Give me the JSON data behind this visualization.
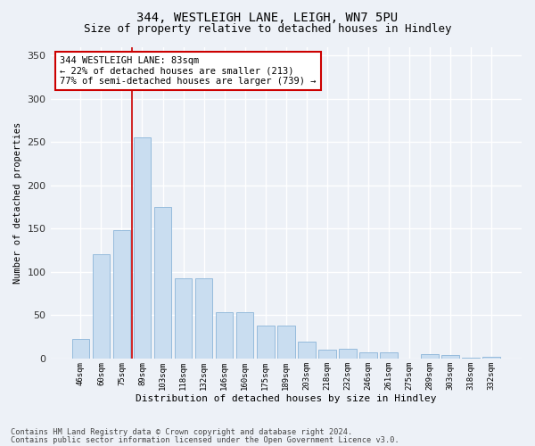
{
  "title": "344, WESTLEIGH LANE, LEIGH, WN7 5PU",
  "subtitle": "Size of property relative to detached houses in Hindley",
  "xlabel": "Distribution of detached houses by size in Hindley",
  "ylabel": "Number of detached properties",
  "categories": [
    "46sqm",
    "60sqm",
    "75sqm",
    "89sqm",
    "103sqm",
    "118sqm",
    "132sqm",
    "146sqm",
    "160sqm",
    "175sqm",
    "189sqm",
    "203sqm",
    "218sqm",
    "232sqm",
    "246sqm",
    "261sqm",
    "275sqm",
    "289sqm",
    "303sqm",
    "318sqm",
    "332sqm"
  ],
  "values": [
    23,
    120,
    148,
    255,
    175,
    93,
    93,
    53,
    53,
    38,
    38,
    20,
    10,
    11,
    7,
    7,
    0,
    5,
    4,
    1,
    2
  ],
  "bar_color": "#c9ddf0",
  "bar_edge_color": "#8ab4d8",
  "annotation_text": "344 WESTLEIGH LANE: 83sqm\n← 22% of detached houses are smaller (213)\n77% of semi-detached houses are larger (739) →",
  "annotation_box_color": "#ffffff",
  "annotation_box_edge": "#cc0000",
  "vline_color": "#cc0000",
  "footer_line1": "Contains HM Land Registry data © Crown copyright and database right 2024.",
  "footer_line2": "Contains public sector information licensed under the Open Government Licence v3.0.",
  "bg_color": "#edf1f7",
  "plot_bg_color": "#edf1f7",
  "grid_color": "#ffffff",
  "ylim": [
    0,
    360
  ],
  "yticks": [
    0,
    50,
    100,
    150,
    200,
    250,
    300,
    350
  ],
  "vline_x": 2.5,
  "title_fontsize": 10,
  "subtitle_fontsize": 9
}
